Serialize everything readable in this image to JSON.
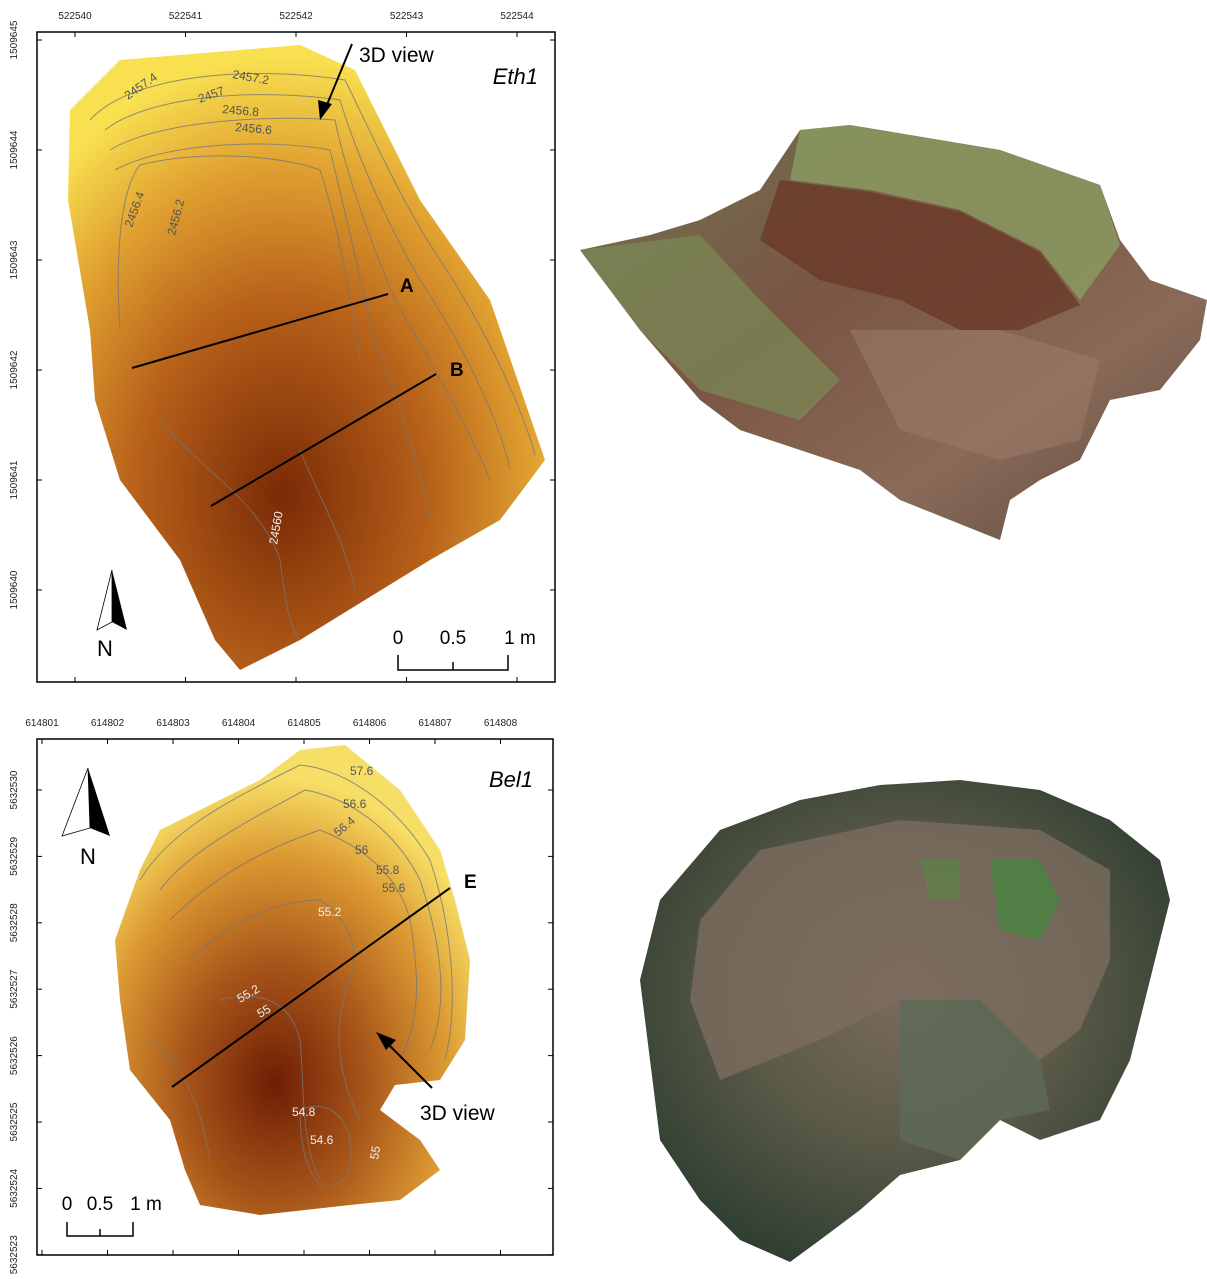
{
  "panels": [
    {
      "name": "Eth1",
      "x_ticks": [
        "522540",
        "522541",
        "522542",
        "522543",
        "522544"
      ],
      "y_ticks": [
        "1509645",
        "1509644",
        "1509643",
        "1509642",
        "1509641",
        "1509640"
      ],
      "contour_labels": [
        "2457.4",
        "2457.2",
        "2457",
        "2456.8",
        "2456.6",
        "2456.4",
        "2456.2",
        "24560"
      ],
      "profile_labels": [
        "A",
        "B"
      ],
      "annotation": "3D view",
      "north": "N",
      "scale": [
        "0",
        "0.5",
        "1 m"
      ]
    },
    {
      "name": "Bel1",
      "x_ticks": [
        "614801",
        "614802",
        "614803",
        "614804",
        "614805",
        "614806",
        "614807",
        "614808"
      ],
      "y_ticks": [
        "5632530",
        "5632529",
        "5632528",
        "5632527",
        "5632526",
        "5632525",
        "5632524",
        "5632523"
      ],
      "contour_labels": [
        "57.6",
        "56.6",
        "56.4",
        "56",
        "55.8",
        "55.6",
        "55.2",
        "55.2",
        "55",
        "54.8",
        "54.6",
        "55"
      ],
      "profile_labels": [
        "E"
      ],
      "annotation": "3D view",
      "north": "N",
      "scale": [
        "0",
        "0.5",
        "1 m"
      ]
    }
  ]
}
